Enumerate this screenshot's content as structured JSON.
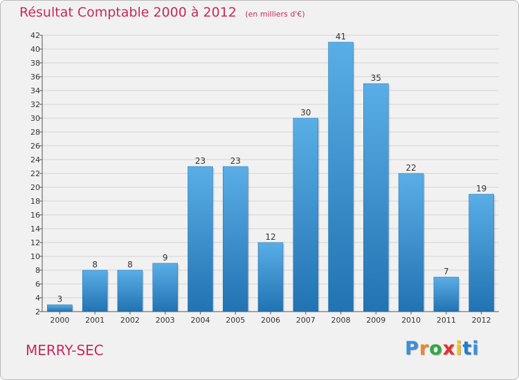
{
  "header": {
    "title": "Résultat Comptable 2000 à 2012",
    "subtitle": "(en milliers d'€)"
  },
  "footer": {
    "town": "MERRY-SEC",
    "brand": "Proxiti"
  },
  "colors": {
    "title": "#c8285e",
    "bar_top": "#5aaee6",
    "bar_bottom": "#2173b2",
    "background": "#f1f1f1"
  },
  "chart_data": {
    "type": "bar",
    "categories": [
      "2000",
      "2001",
      "2002",
      "2003",
      "2004",
      "2005",
      "2006",
      "2007",
      "2008",
      "2009",
      "2010",
      "2011",
      "2012"
    ],
    "values": [
      3,
      8,
      8,
      9,
      23,
      23,
      12,
      30,
      41,
      35,
      22,
      7,
      19
    ],
    "title": "Résultat Comptable 2000 à 2012",
    "xlabel": "",
    "ylabel": "",
    "ylim": [
      2,
      42
    ],
    "yticks": [
      2,
      4,
      6,
      8,
      10,
      12,
      14,
      16,
      18,
      20,
      22,
      24,
      26,
      28,
      30,
      32,
      34,
      36,
      38,
      40,
      42
    ],
    "grid": true,
    "data_labels": true,
    "legend": "none"
  }
}
